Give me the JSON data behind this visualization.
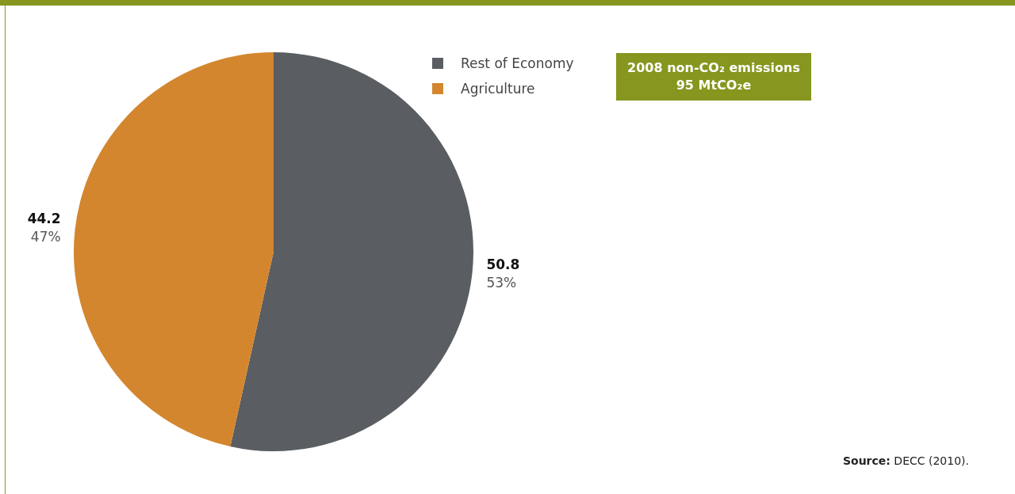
{
  "chart_data": {
    "type": "pie",
    "title": "2008 non-CO₂ emissions",
    "subtitle": "95 MtCO₂e",
    "categories": [
      "Rest of Economy",
      "Agriculture"
    ],
    "values": [
      50.8,
      44.2
    ],
    "colors": [
      "#5a5e62",
      "#d4862e"
    ],
    "value_labels": [
      "50.8\n53%",
      "44.2\n47%"
    ],
    "legend": "top right",
    "annotations": [
      "Source: DECC (2010)."
    ]
  }
}
